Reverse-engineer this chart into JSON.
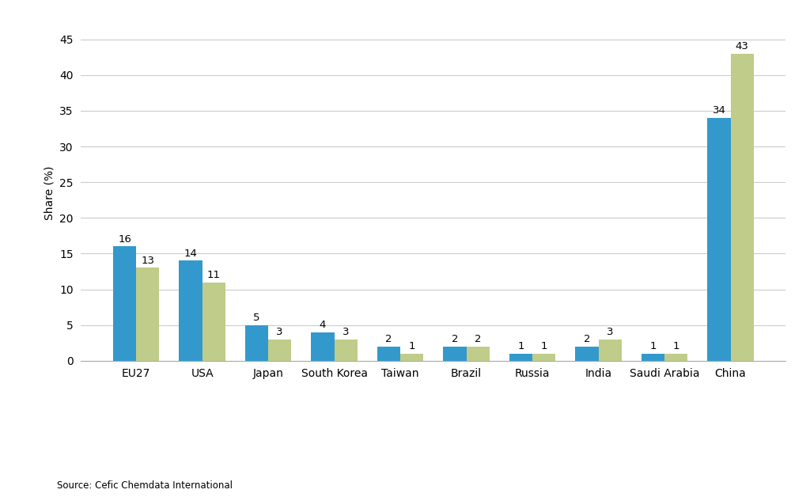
{
  "categories": [
    "EU27",
    "USA",
    "Japan",
    "South Korea",
    "Taiwan",
    "Brazil",
    "Russia",
    "India",
    "Saudi Arabia",
    "China"
  ],
  "values_2013": [
    16,
    14,
    5,
    4,
    2,
    2,
    1,
    2,
    1,
    34
  ],
  "values_2023": [
    13,
    11,
    3,
    3,
    1,
    2,
    1,
    3,
    1,
    43
  ],
  "color_2013": "#3399CC",
  "color_2023": "#BFCC8A",
  "ylabel": "Share (%)",
  "ylim": [
    0,
    47
  ],
  "yticks": [
    0,
    5,
    10,
    15,
    20,
    25,
    30,
    35,
    40,
    45
  ],
  "source": "Source: Cefic Chemdata International",
  "bar_width": 0.35,
  "label_fontsize": 9.5,
  "axis_fontsize": 10,
  "tick_fontsize": 10,
  "legend_fontsize": 10,
  "source_fontsize": 8.5,
  "background_color": "#FFFFFF",
  "grid_color": "#CCCCCC"
}
